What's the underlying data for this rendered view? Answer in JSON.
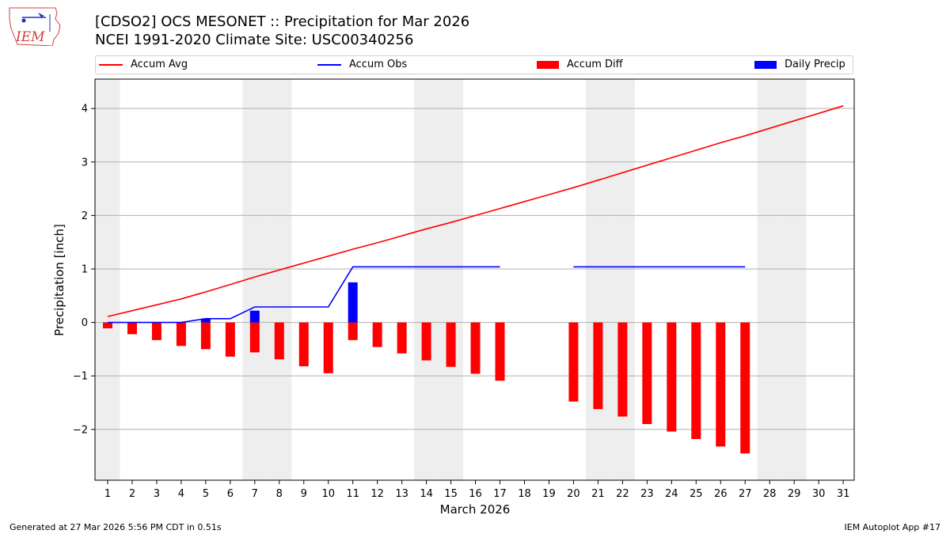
{
  "header": {
    "title_line1": "[CDSO2] OCS MESONET :: Precipitation for Mar 2026",
    "title_line2": "NCEI 1991-2020 Climate Site: USC00340256",
    "logo_text": "IEM"
  },
  "footer": {
    "left": "Generated at 27 Mar 2026 5:56 PM CDT in 0.51s",
    "right": "IEM Autoplot App #17"
  },
  "colors": {
    "avg": "#ff0000",
    "obs": "#0000ff",
    "diff": "#ff0000",
    "daily": "#0000ff",
    "weekend": "#eeeeee",
    "grid": "#b0b0b0"
  },
  "chart_data": {
    "type": "bar",
    "title": "[CDSO2] OCS MESONET :: Precipitation for Mar 2026",
    "subtitle": "NCEI 1991-2020 Climate Site: USC00340256",
    "xlabel": "March 2026",
    "ylabel": "Precipitation [inch]",
    "ylim": [
      -2.95,
      4.55
    ],
    "yticks": [
      -2,
      -1,
      0,
      1,
      2,
      3,
      4
    ],
    "ytick_labels": [
      "−2",
      "−1",
      "0",
      "1",
      "2",
      "3",
      "4"
    ],
    "grid": true,
    "legend_position": "top",
    "legend": [
      "Accum Avg",
      "Accum Obs",
      "Accum Diff",
      "Daily Precip"
    ],
    "days": [
      1,
      2,
      3,
      4,
      5,
      6,
      7,
      8,
      9,
      10,
      11,
      12,
      13,
      14,
      15,
      16,
      17,
      18,
      19,
      20,
      21,
      22,
      23,
      24,
      25,
      26,
      27,
      28,
      29,
      30,
      31
    ],
    "weekend_days": [
      1,
      7,
      8,
      14,
      15,
      21,
      22,
      28,
      29
    ],
    "series": [
      {
        "name": "Accum Avg",
        "kind": "line",
        "values": [
          0.11,
          0.22,
          0.33,
          0.44,
          0.57,
          0.71,
          0.85,
          0.98,
          1.11,
          1.24,
          1.37,
          1.49,
          1.62,
          1.75,
          1.87,
          2.0,
          2.13,
          2.26,
          2.39,
          2.52,
          2.66,
          2.8,
          2.94,
          3.08,
          3.22,
          3.36,
          3.49,
          3.63,
          3.77,
          3.91,
          4.05
        ]
      },
      {
        "name": "Accum Obs",
        "kind": "line",
        "values": [
          0.0,
          0.0,
          0.0,
          0.0,
          0.07,
          0.07,
          0.29,
          0.29,
          0.29,
          0.29,
          1.04,
          1.04,
          1.04,
          1.04,
          1.04,
          1.04,
          1.04,
          null,
          null,
          1.04,
          1.04,
          1.04,
          1.04,
          1.04,
          1.04,
          1.04,
          1.04,
          null,
          null,
          null,
          null
        ]
      },
      {
        "name": "Accum Diff",
        "kind": "bar",
        "values": [
          -0.11,
          -0.22,
          -0.33,
          -0.44,
          -0.5,
          -0.64,
          -0.56,
          -0.69,
          -0.82,
          -0.95,
          -0.33,
          -0.46,
          -0.58,
          -0.71,
          -0.83,
          -0.96,
          -1.09,
          null,
          null,
          -1.48,
          -1.62,
          -1.76,
          -1.9,
          -2.04,
          -2.18,
          -2.32,
          -2.45,
          null,
          null,
          null,
          null
        ]
      },
      {
        "name": "Daily Precip",
        "kind": "bar",
        "values": [
          0,
          0,
          0,
          0,
          0.07,
          0,
          0.22,
          0,
          0,
          0,
          0.75,
          0,
          0,
          0,
          0,
          0,
          0,
          null,
          null,
          0,
          0,
          0,
          0,
          0,
          0,
          0,
          0,
          null,
          null,
          null,
          null
        ]
      }
    ]
  }
}
